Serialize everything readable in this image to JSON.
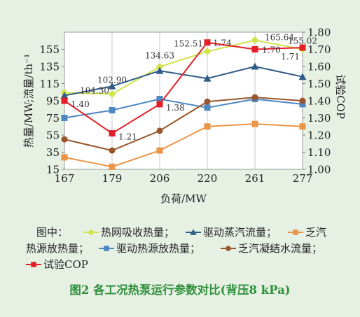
{
  "chart_data": {
    "type": "line",
    "categories": [
      "167",
      "179",
      "206",
      "220",
      "261",
      "277"
    ],
    "xlabel": "负荷/MW",
    "ylabel_left": "热量/MW;流量/th⁻¹",
    "ylabel_right": "试验COP",
    "yleft_lim": [
      15,
      175
    ],
    "yleft_ticks": [
      "15",
      "35",
      "55",
      "75",
      "95",
      "115",
      "135",
      "155"
    ],
    "yright_lim": [
      1.0,
      1.8
    ],
    "yright_ticks": [
      "1.00",
      "1.10",
      "1.20",
      "1.30",
      "1.40",
      "1.50",
      "1.60",
      "1.70",
      "1.80"
    ],
    "grid": "vertical",
    "series": [
      {
        "key": "heat_absorb",
        "name": "热网吸收热量",
        "axis": "left",
        "color": "#cfe34a",
        "marker": "diamond",
        "values": [
          104.3,
          102.9,
          134.63,
          152.51,
          165.64,
          155.02
        ]
      },
      {
        "key": "drive_steam",
        "name": "驱动蒸汽流量",
        "axis": "left",
        "color": "#2f5c86",
        "marker": "triangle",
        "values": [
          101,
          112,
          130,
          121,
          135,
          123
        ]
      },
      {
        "key": "exhaust_heat",
        "name": "乏汽热源放热量",
        "axis": "left",
        "color": "#eb9548",
        "marker": "square",
        "values": [
          29,
          18,
          37,
          65,
          68,
          65
        ]
      },
      {
        "key": "drive_heat",
        "name": "驱动热源放热量",
        "axis": "left",
        "color": "#4f87c0",
        "marker": "square",
        "values": [
          75,
          84,
          97,
          87,
          97,
          91
        ]
      },
      {
        "key": "condensate",
        "name": "乏汽凝结水流量",
        "axis": "left",
        "color": "#99552c",
        "marker": "circle",
        "values": [
          50,
          37,
          60,
          94,
          99,
          95
        ]
      },
      {
        "key": "cop",
        "name": "试验COP",
        "axis": "right",
        "color": "#e3202a",
        "marker": "square",
        "values": [
          1.4,
          1.21,
          1.38,
          1.74,
          1.7,
          1.71
        ]
      }
    ],
    "data_labels": [
      {
        "series": "heat_absorb",
        "index": 0,
        "text": "104.30"
      },
      {
        "series": "heat_absorb",
        "index": 1,
        "text": "102.90"
      },
      {
        "series": "heat_absorb",
        "index": 2,
        "text": "134.63"
      },
      {
        "series": "heat_absorb",
        "index": 3,
        "text": "152.51"
      },
      {
        "series": "heat_absorb",
        "index": 4,
        "text": "165.64"
      },
      {
        "series": "heat_absorb",
        "index": 5,
        "text": "155.02"
      },
      {
        "series": "cop",
        "index": 0,
        "text": "1.40"
      },
      {
        "series": "cop",
        "index": 1,
        "text": "1.21"
      },
      {
        "series": "cop",
        "index": 2,
        "text": "1.38"
      },
      {
        "series": "cop",
        "index": 3,
        "text": "1.74"
      },
      {
        "series": "cop",
        "index": 4,
        "text": "1.70"
      },
      {
        "series": "cop",
        "index": 5,
        "text": "1.71"
      }
    ]
  },
  "legend": {
    "prefix": "图中：",
    "items": [
      {
        "series": "heat_absorb",
        "text": "热网吸收热量；"
      },
      {
        "series": "drive_steam",
        "text": "驱动蒸汽流量；"
      },
      {
        "series": "exhaust_heat",
        "text": "乏汽"
      },
      {
        "series": "exhaust_heat",
        "text": "热源放热量；"
      },
      {
        "series": "drive_heat",
        "text": "驱动热源放热量；"
      },
      {
        "series": "condensate",
        "text": "乏汽凝结水流量；"
      },
      {
        "series": "cop",
        "text": "试验COP"
      }
    ]
  },
  "caption": "图2  各工况热泵运行参数对比(背压8 kPa)"
}
